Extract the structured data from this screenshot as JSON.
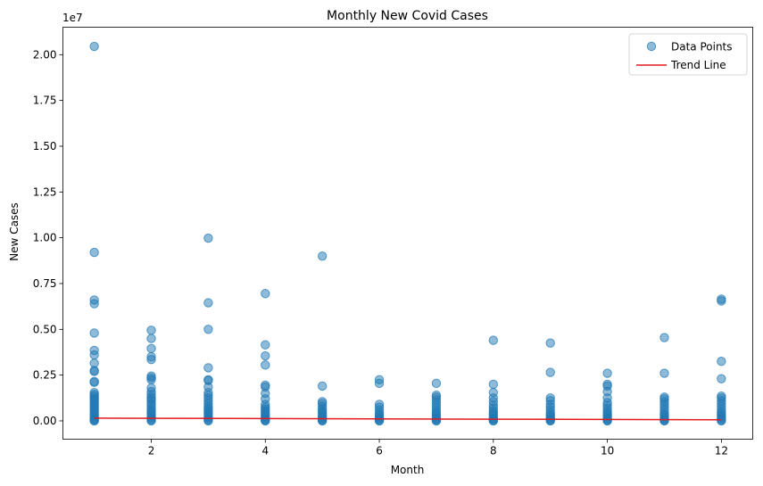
{
  "chart_data": {
    "type": "scatter",
    "title": "Monthly New Covid Cases",
    "xlabel": "Month",
    "ylabel": "New Cases",
    "y_offset_label": "1e7",
    "y_scale_factor": 10000000,
    "xlim": [
      0.45,
      12.55
    ],
    "ylim": [
      -1000000,
      21500000
    ],
    "x_ticks": [
      2,
      4,
      6,
      8,
      10,
      12
    ],
    "x_tick_labels": [
      "2",
      "4",
      "6",
      "8",
      "10",
      "12"
    ],
    "y_ticks": [
      0,
      2500000,
      5000000,
      7500000,
      10000000,
      12500000,
      15000000,
      17500000,
      20000000
    ],
    "y_tick_labels": [
      "0.00",
      "0.25",
      "0.50",
      "0.75",
      "1.00",
      "1.25",
      "1.50",
      "1.75",
      "2.00"
    ],
    "grid": false,
    "legend_position": "top-right",
    "colors": {
      "points": "#1f77b4",
      "trend": "#e41a1c"
    },
    "series": [
      {
        "name": "Data Points",
        "kind": "scatter",
        "points": [
          [
            1,
            20450000
          ],
          [
            1,
            9200000
          ],
          [
            1,
            6600000
          ],
          [
            1,
            6400000
          ],
          [
            1,
            4800000
          ],
          [
            1,
            3850000
          ],
          [
            1,
            3600000
          ],
          [
            1,
            3150000
          ],
          [
            1,
            2750000
          ],
          [
            1,
            2700000
          ],
          [
            1,
            2150000
          ],
          [
            1,
            2100000
          ],
          [
            1,
            1550000
          ],
          [
            1,
            1450000
          ],
          [
            1,
            1350000
          ],
          [
            1,
            1250000
          ],
          [
            1,
            1150000
          ],
          [
            1,
            1050000
          ],
          [
            1,
            950000
          ],
          [
            1,
            850000
          ],
          [
            1,
            750000
          ],
          [
            1,
            650000
          ],
          [
            1,
            550000
          ],
          [
            1,
            450000
          ],
          [
            1,
            350000
          ],
          [
            1,
            250000
          ],
          [
            1,
            150000
          ],
          [
            1,
            80000
          ],
          [
            1,
            20000
          ],
          [
            1,
            0
          ],
          [
            2,
            4950000
          ],
          [
            2,
            4500000
          ],
          [
            2,
            3950000
          ],
          [
            2,
            3500000
          ],
          [
            2,
            3350000
          ],
          [
            2,
            2450000
          ],
          [
            2,
            2350000
          ],
          [
            2,
            2250000
          ],
          [
            2,
            1800000
          ],
          [
            2,
            1600000
          ],
          [
            2,
            1450000
          ],
          [
            2,
            1300000
          ],
          [
            2,
            1200000
          ],
          [
            2,
            1100000
          ],
          [
            2,
            950000
          ],
          [
            2,
            850000
          ],
          [
            2,
            700000
          ],
          [
            2,
            600000
          ],
          [
            2,
            500000
          ],
          [
            2,
            400000
          ],
          [
            2,
            300000
          ],
          [
            2,
            200000
          ],
          [
            2,
            120000
          ],
          [
            2,
            50000
          ],
          [
            2,
            0
          ],
          [
            3,
            9980000
          ],
          [
            3,
            6450000
          ],
          [
            3,
            5000000
          ],
          [
            3,
            2900000
          ],
          [
            3,
            2250000
          ],
          [
            3,
            2200000
          ],
          [
            3,
            1850000
          ],
          [
            3,
            1550000
          ],
          [
            3,
            1400000
          ],
          [
            3,
            1250000
          ],
          [
            3,
            1100000
          ],
          [
            3,
            950000
          ],
          [
            3,
            800000
          ],
          [
            3,
            700000
          ],
          [
            3,
            600000
          ],
          [
            3,
            500000
          ],
          [
            3,
            400000
          ],
          [
            3,
            300000
          ],
          [
            3,
            200000
          ],
          [
            3,
            120000
          ],
          [
            3,
            50000
          ],
          [
            3,
            0
          ],
          [
            4,
            6950000
          ],
          [
            4,
            4150000
          ],
          [
            4,
            3550000
          ],
          [
            4,
            3050000
          ],
          [
            4,
            1950000
          ],
          [
            4,
            1850000
          ],
          [
            4,
            1500000
          ],
          [
            4,
            1200000
          ],
          [
            4,
            900000
          ],
          [
            4,
            750000
          ],
          [
            4,
            650000
          ],
          [
            4,
            550000
          ],
          [
            4,
            450000
          ],
          [
            4,
            350000
          ],
          [
            4,
            250000
          ],
          [
            4,
            150000
          ],
          [
            4,
            80000
          ],
          [
            4,
            20000
          ],
          [
            4,
            0
          ],
          [
            5,
            9000000
          ],
          [
            5,
            1900000
          ],
          [
            5,
            1050000
          ],
          [
            5,
            950000
          ],
          [
            5,
            800000
          ],
          [
            5,
            650000
          ],
          [
            5,
            550000
          ],
          [
            5,
            450000
          ],
          [
            5,
            350000
          ],
          [
            5,
            250000
          ],
          [
            5,
            150000
          ],
          [
            5,
            80000
          ],
          [
            5,
            20000
          ],
          [
            5,
            0
          ],
          [
            6,
            2250000
          ],
          [
            6,
            2050000
          ],
          [
            6,
            900000
          ],
          [
            6,
            750000
          ],
          [
            6,
            600000
          ],
          [
            6,
            450000
          ],
          [
            6,
            350000
          ],
          [
            6,
            250000
          ],
          [
            6,
            150000
          ],
          [
            6,
            80000
          ],
          [
            6,
            20000
          ],
          [
            6,
            0
          ],
          [
            7,
            2050000
          ],
          [
            7,
            1400000
          ],
          [
            7,
            1300000
          ],
          [
            7,
            1150000
          ],
          [
            7,
            1000000
          ],
          [
            7,
            850000
          ],
          [
            7,
            700000
          ],
          [
            7,
            550000
          ],
          [
            7,
            450000
          ],
          [
            7,
            350000
          ],
          [
            7,
            250000
          ],
          [
            7,
            150000
          ],
          [
            7,
            80000
          ],
          [
            7,
            20000
          ],
          [
            7,
            0
          ],
          [
            8,
            4400000
          ],
          [
            8,
            2000000
          ],
          [
            8,
            1550000
          ],
          [
            8,
            1250000
          ],
          [
            8,
            1050000
          ],
          [
            8,
            850000
          ],
          [
            8,
            700000
          ],
          [
            8,
            550000
          ],
          [
            8,
            450000
          ],
          [
            8,
            350000
          ],
          [
            8,
            250000
          ],
          [
            8,
            150000
          ],
          [
            8,
            80000
          ],
          [
            8,
            20000
          ],
          [
            8,
            0
          ],
          [
            9,
            4250000
          ],
          [
            9,
            2650000
          ],
          [
            9,
            1250000
          ],
          [
            9,
            1100000
          ],
          [
            9,
            900000
          ],
          [
            9,
            750000
          ],
          [
            9,
            600000
          ],
          [
            9,
            450000
          ],
          [
            9,
            350000
          ],
          [
            9,
            250000
          ],
          [
            9,
            150000
          ],
          [
            9,
            80000
          ],
          [
            9,
            20000
          ],
          [
            9,
            0
          ],
          [
            10,
            2600000
          ],
          [
            10,
            2000000
          ],
          [
            10,
            1900000
          ],
          [
            10,
            1600000
          ],
          [
            10,
            1250000
          ],
          [
            10,
            1000000
          ],
          [
            10,
            850000
          ],
          [
            10,
            700000
          ],
          [
            10,
            550000
          ],
          [
            10,
            450000
          ],
          [
            10,
            350000
          ],
          [
            10,
            250000
          ],
          [
            10,
            150000
          ],
          [
            10,
            80000
          ],
          [
            10,
            20000
          ],
          [
            10,
            0
          ],
          [
            11,
            4550000
          ],
          [
            11,
            2600000
          ],
          [
            11,
            1300000
          ],
          [
            11,
            1200000
          ],
          [
            11,
            1050000
          ],
          [
            11,
            900000
          ],
          [
            11,
            750000
          ],
          [
            11,
            600000
          ],
          [
            11,
            450000
          ],
          [
            11,
            350000
          ],
          [
            11,
            250000
          ],
          [
            11,
            150000
          ],
          [
            11,
            80000
          ],
          [
            11,
            20000
          ],
          [
            11,
            0
          ],
          [
            12,
            6650000
          ],
          [
            12,
            6550000
          ],
          [
            12,
            3250000
          ],
          [
            12,
            2300000
          ],
          [
            12,
            1350000
          ],
          [
            12,
            1250000
          ],
          [
            12,
            1100000
          ],
          [
            12,
            950000
          ],
          [
            12,
            800000
          ],
          [
            12,
            650000
          ],
          [
            12,
            500000
          ],
          [
            12,
            400000
          ],
          [
            12,
            300000
          ],
          [
            12,
            200000
          ],
          [
            12,
            120000
          ],
          [
            12,
            50000
          ],
          [
            12,
            0
          ]
        ]
      },
      {
        "name": "Trend Line",
        "kind": "line",
        "x": [
          1,
          12
        ],
        "y": [
          150000,
          60000
        ]
      }
    ]
  }
}
